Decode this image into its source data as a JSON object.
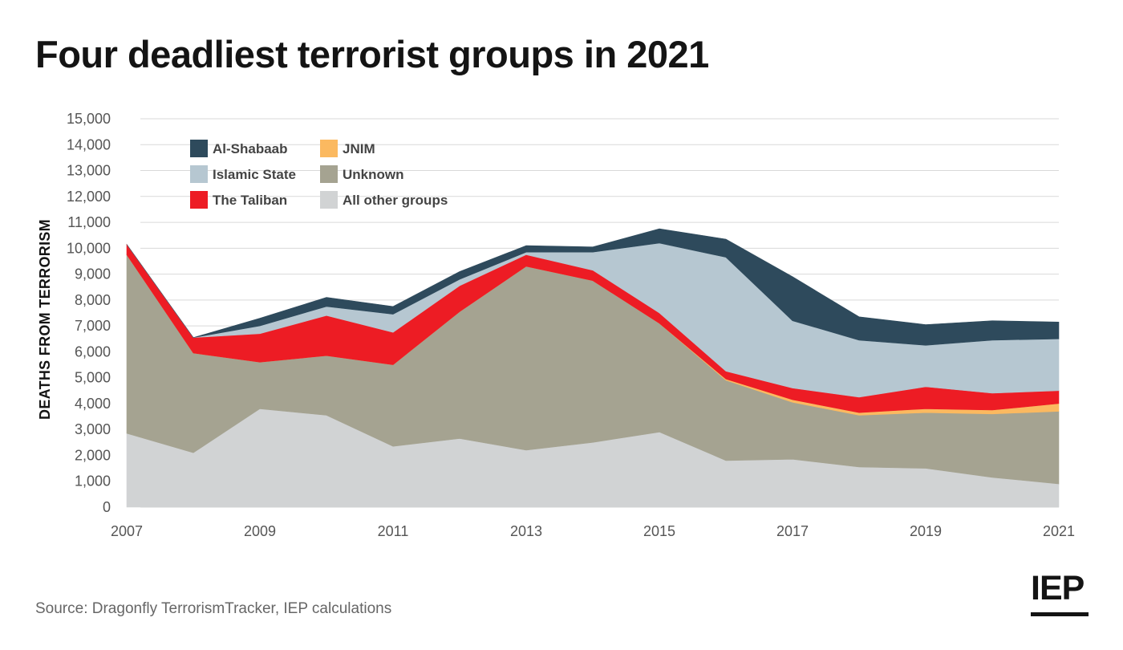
{
  "page": {
    "title": "Four deadliest terrorist groups in 2021",
    "source": "Source: Dragonfly TerrorismTracker, IEP calculations",
    "logo": "IEP"
  },
  "chart_data": {
    "type": "area",
    "stacked": true,
    "title": "Four deadliest terrorist groups in 2021",
    "xlabel": "",
    "ylabel": "DEATHS FROM TERRORISM",
    "x": [
      2007,
      2008,
      2009,
      2010,
      2011,
      2012,
      2013,
      2014,
      2015,
      2016,
      2017,
      2018,
      2019,
      2020,
      2021
    ],
    "x_ticks": [
      "2007",
      "2009",
      "2011",
      "2013",
      "2015",
      "2017",
      "2019",
      "2021"
    ],
    "y_ticks": [
      "0",
      "1,000",
      "2,000",
      "3,000",
      "4,000",
      "5,000",
      "6,000",
      "7,000",
      "8,000",
      "9,000",
      "10,000",
      "11,000",
      "12,000",
      "13,000",
      "14,000",
      "15,000"
    ],
    "ylim": [
      0,
      15000
    ],
    "grid": true,
    "legend_position": "top-left",
    "series": [
      {
        "name": "All other groups",
        "color": "#d1d3d4",
        "values": [
          2850,
          2100,
          3800,
          3550,
          2350,
          2650,
          2200,
          2500,
          2900,
          1800,
          1850,
          1550,
          1500,
          1150,
          900
        ]
      },
      {
        "name": "Unknown",
        "color": "#a5a391",
        "values": [
          6900,
          3850,
          1800,
          2300,
          3150,
          4900,
          7100,
          6250,
          4200,
          3100,
          2200,
          2000,
          2150,
          2450,
          2800
        ]
      },
      {
        "name": "JNIM",
        "color": "#fbb960",
        "values": [
          0,
          0,
          0,
          0,
          0,
          0,
          0,
          0,
          0,
          50,
          100,
          100,
          150,
          150,
          300
        ]
      },
      {
        "name": "The Taliban",
        "color": "#ed1c24",
        "values": [
          400,
          600,
          1100,
          1550,
          1250,
          1000,
          450,
          400,
          400,
          300,
          450,
          600,
          850,
          650,
          500
        ]
      },
      {
        "name": "Islamic State",
        "color": "#b6c7d1",
        "values": [
          0,
          0,
          300,
          350,
          700,
          250,
          100,
          700,
          2700,
          4400,
          2600,
          2200,
          1600,
          2050,
          2000
        ]
      },
      {
        "name": "Al-Shabaab",
        "color": "#2e4a5c",
        "values": [
          0,
          0,
          300,
          350,
          300,
          300,
          250,
          200,
          550,
          700,
          1700,
          900,
          800,
          750,
          650
        ]
      }
    ],
    "legend_order": [
      "Al-Shabaab",
      "JNIM",
      "Islamic State",
      "Unknown",
      "The Taliban",
      "All other groups"
    ]
  }
}
